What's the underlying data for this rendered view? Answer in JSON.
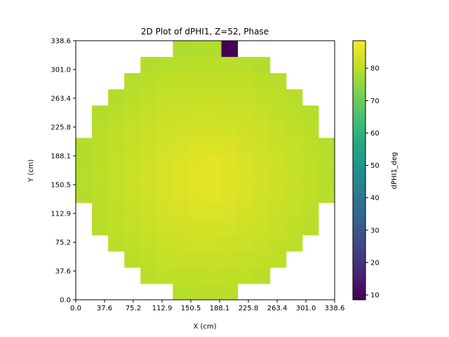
{
  "chart_data": {
    "type": "heatmap",
    "title": "2D Plot of dPHI1, Z=52, Phase",
    "xlabel": "X (cm)",
    "ylabel": "Y (cm)",
    "xlim": [
      0,
      338.6
    ],
    "ylim": [
      0,
      338.6
    ],
    "x_ticks": [
      "0.0",
      "37.6",
      "75.2",
      "112.9",
      "150.5",
      "188.1",
      "225.8",
      "263.4",
      "301.0",
      "338.6"
    ],
    "y_ticks": [
      "0.0",
      "37.6",
      "75.2",
      "112.9",
      "150.5",
      "188.1",
      "225.8",
      "263.4",
      "301.0",
      "338.6"
    ],
    "grid": false,
    "colormap": "viridis",
    "colorbar": {
      "label": "dPHI1_deg",
      "range": [
        8.5,
        88.5
      ],
      "ticks": [
        "10",
        "20",
        "30",
        "40",
        "50",
        "60",
        "70",
        "80"
      ]
    },
    "grid_cells": {
      "columns": 16,
      "rows": 16,
      "cell_size_cm": 21.16
    },
    "mask_rows_top_to_bottom": [
      [
        6,
        9
      ],
      [
        4,
        11
      ],
      [
        3,
        12
      ],
      [
        2,
        13
      ],
      [
        1,
        14
      ],
      [
        1,
        14
      ],
      [
        0,
        15
      ],
      [
        0,
        15
      ],
      [
        0,
        15
      ],
      [
        0,
        15
      ],
      [
        1,
        14
      ],
      [
        1,
        14
      ],
      [
        2,
        13
      ],
      [
        3,
        12
      ],
      [
        4,
        11
      ],
      [
        6,
        9
      ]
    ],
    "center_value": 86,
    "edge_value": 78,
    "outlier_cell": {
      "column": 9,
      "row_from_top": 0,
      "value": 8.5
    }
  }
}
